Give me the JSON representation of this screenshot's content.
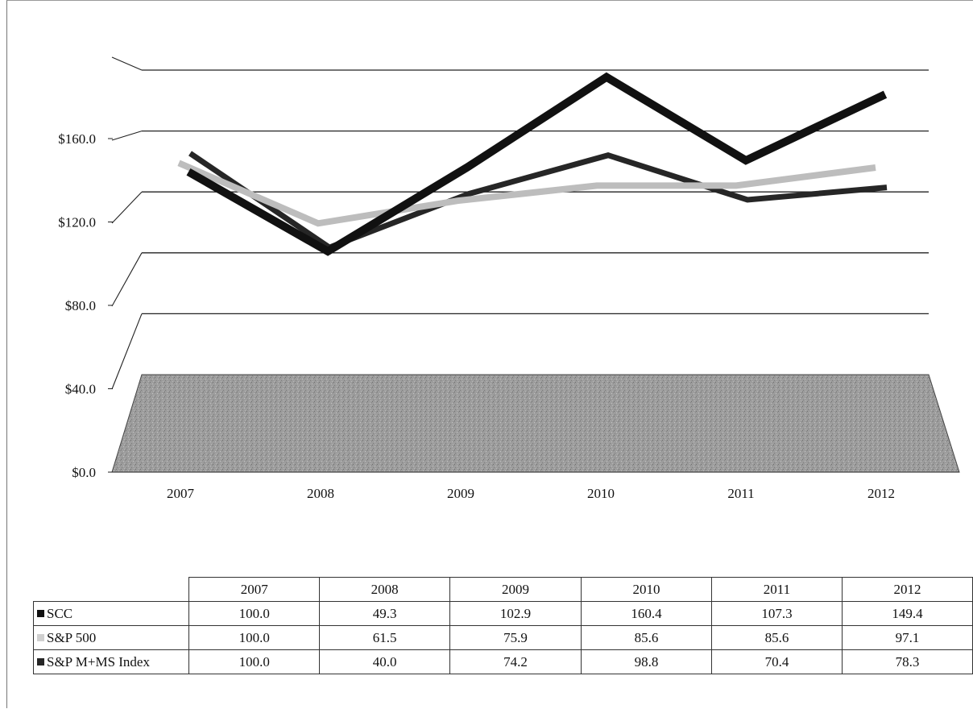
{
  "chart_data": {
    "type": "line",
    "categories": [
      "2007",
      "2008",
      "2009",
      "2010",
      "2011",
      "2012"
    ],
    "y_tick_labels": [
      "$0.0",
      "$40.0",
      "$80.0",
      "$120.0",
      "$160.0"
    ],
    "ylim": [
      0,
      200
    ],
    "grid": true,
    "legend": "data table below chart",
    "series": [
      {
        "name": "SCC",
        "values": [
          100.0,
          49.3,
          102.9,
          160.4,
          107.3,
          149.4
        ],
        "color": "#111111"
      },
      {
        "name": "S&P 500",
        "values": [
          100.0,
          61.5,
          75.9,
          85.6,
          85.6,
          97.1
        ],
        "color": "#bdbdbd"
      },
      {
        "name": "S&P M+MS Index",
        "values": [
          100.0,
          40.0,
          74.2,
          98.8,
          70.4,
          78.3
        ],
        "color": "#262626"
      }
    ],
    "table": {
      "header": [
        "2007",
        "2008",
        "2009",
        "2010",
        "2011",
        "2012"
      ],
      "rows": [
        {
          "label": "SCC",
          "values": [
            "100.0",
            "49.3",
            "102.9",
            "160.4",
            "107.3",
            "149.4"
          ]
        },
        {
          "label": "S&P 500",
          "values": [
            "100.0",
            "61.5",
            "75.9",
            "85.6",
            "85.6",
            "97.1"
          ]
        },
        {
          "label": "S&P M+MS Index",
          "values": [
            "100.0",
            "40.0",
            "74.2",
            "98.8",
            "70.4",
            "78.3"
          ]
        }
      ]
    }
  }
}
